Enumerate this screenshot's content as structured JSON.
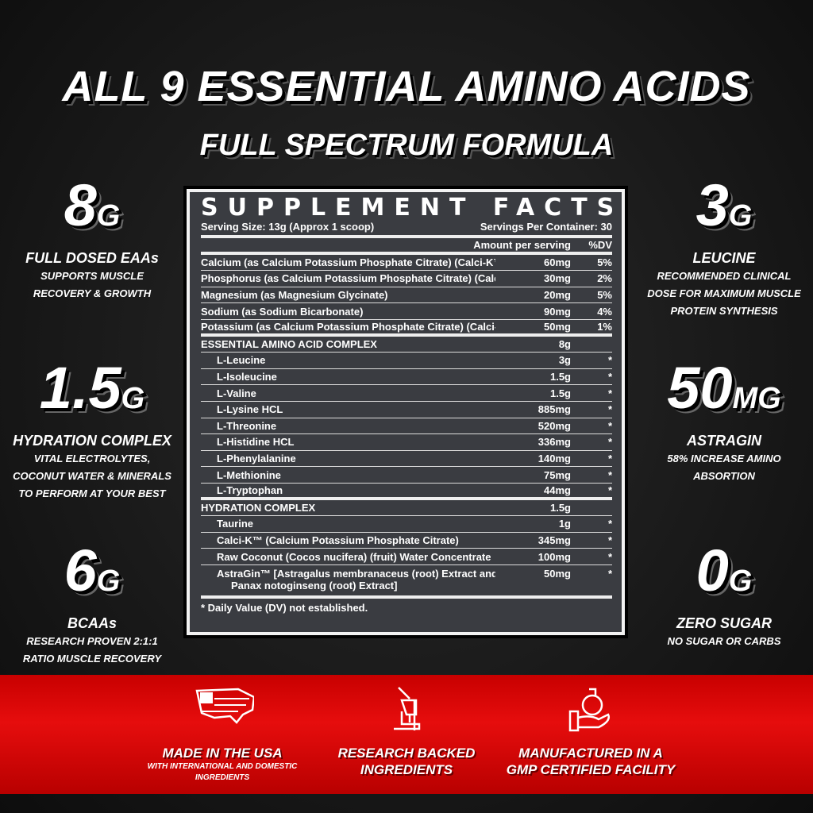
{
  "title": "ALL 9 ESSENTIAL AMINO ACIDS",
  "subtitle": "FULL SPECTRUM FORMULA",
  "left_stats": [
    {
      "value": "8",
      "unit": "G",
      "label": "FULL DOSED EAAs",
      "desc": [
        "SUPPORTS MUSCLE",
        "RECOVERY & GROWTH"
      ]
    },
    {
      "value": "1.5",
      "unit": "G",
      "label": "HYDRATION COMPLEX",
      "desc": [
        "VITAL ELECTROLYTES,",
        "COCONUT WATER & MINERALS",
        "TO PERFORM AT YOUR BEST"
      ]
    },
    {
      "value": "6",
      "unit": "G",
      "label": "BCAAs",
      "desc": [
        "RESEARCH PROVEN 2:1:1",
        "RATIO MUSCLE RECOVERY"
      ]
    }
  ],
  "right_stats": [
    {
      "value": "3",
      "unit": "G",
      "label": "LEUCINE",
      "desc": [
        "RECOMMENDED CLINICAL",
        "DOSE FOR MAXIMUM MUSCLE",
        "PROTEIN SYNTHESIS"
      ]
    },
    {
      "value": "50",
      "unit": "MG",
      "label": "ASTRAGIN",
      "desc": [
        "58% INCREASE AMINO",
        "ABSORTION"
      ]
    },
    {
      "value": "0",
      "unit": "G",
      "label": "ZERO SUGAR",
      "desc": [
        "NO SUGAR OR CARBS"
      ]
    }
  ],
  "facts": {
    "title": "SUPPLEMENT FACTS",
    "serving_size": "Serving Size: 13g (Approx 1 scoop)",
    "servings_per_container": "Servings Per Container: 30",
    "amount_header": "Amount per serving",
    "dv_header": "%DV",
    "rows": [
      {
        "name": "Calcium (as Calcium Potassium Phosphate Citrate) (Calci-K™)",
        "amount": "60mg",
        "dv": "5%"
      },
      {
        "name": "Phosphorus (as Calcium Potassium Phosphate Citrate) (Calci-K™)",
        "amount": "30mg",
        "dv": "2%"
      },
      {
        "name": "Magnesium (as Magnesium Glycinate)",
        "amount": "20mg",
        "dv": "5%"
      },
      {
        "name": "Sodium (as Sodium Bicarbonate)",
        "amount": "90mg",
        "dv": "4%"
      },
      {
        "name": "Potassium (as Calcium Potassium Phosphate Citrate) (Calci-K™)",
        "amount": "50mg",
        "dv": "1%",
        "thick": true
      },
      {
        "name": "ESSENTIAL AMINO ACID COMPLEX",
        "amount": "8g",
        "dv": ""
      },
      {
        "name": "L-Leucine",
        "amount": "3g",
        "dv": "*",
        "sub": true
      },
      {
        "name": "L-Isoleucine",
        "amount": "1.5g",
        "dv": "*",
        "sub": true
      },
      {
        "name": "L-Valine",
        "amount": "1.5g",
        "dv": "*",
        "sub": true
      },
      {
        "name": "L-Lysine HCL",
        "amount": "885mg",
        "dv": "*",
        "sub": true
      },
      {
        "name": "L-Threonine",
        "amount": "520mg",
        "dv": "*",
        "sub": true
      },
      {
        "name": "L-Histidine HCL",
        "amount": "336mg",
        "dv": "*",
        "sub": true
      },
      {
        "name": "L-Phenylalanine",
        "amount": "140mg",
        "dv": "*",
        "sub": true
      },
      {
        "name": "L-Methionine",
        "amount": "75mg",
        "dv": "*",
        "sub": true
      },
      {
        "name": "L-Tryptophan",
        "amount": "44mg",
        "dv": "*",
        "sub": true,
        "thick": true
      },
      {
        "name": "HYDRATION COMPLEX",
        "amount": "1.5g",
        "dv": ""
      },
      {
        "name": "Taurine",
        "amount": "1g",
        "dv": "*",
        "sub": true
      },
      {
        "name": "Calci-K™ (Calcium Potassium Phosphate Citrate)",
        "amount": "345mg",
        "dv": "*",
        "sub": true
      },
      {
        "name": "Raw Coconut (Cocos nucifera) (fruit) Water Concentrate",
        "amount": "100mg",
        "dv": "*",
        "sub": true
      },
      {
        "name": "AstraGin™ [Astragalus membranaceus (root) Extract and",
        "name2": "Panax notoginseng (root) Extract]",
        "amount": "50mg",
        "dv": "*",
        "sub": true,
        "thick": true
      }
    ],
    "footnote": "* Daily Value (DV) not established."
  },
  "banner": [
    {
      "icon": "usa-flag-map-icon",
      "heading": [
        "MADE IN THE USA"
      ],
      "sub": [
        "WITH INTERNATIONAL AND DOMESTIC",
        "INGREDIENTS"
      ]
    },
    {
      "icon": "microscope-icon",
      "heading": [
        "RESEARCH BACKED",
        "INGREDIENTS"
      ],
      "sub": []
    },
    {
      "icon": "flask-hand-icon",
      "heading": [
        "MANUFACTURED IN A",
        "GMP CERTIFIED FACILITY"
      ],
      "sub": []
    }
  ],
  "colors": {
    "banner_red": "#e00d0d",
    "panel": "#3a3c41",
    "background": "#1a1a1a"
  }
}
